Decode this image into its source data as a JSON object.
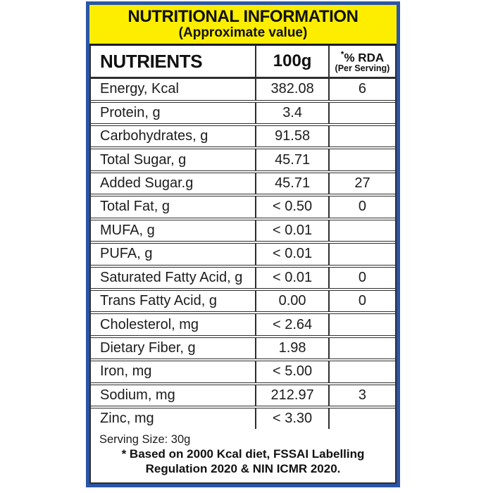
{
  "header": {
    "title": "NUTRITIONAL INFORMATION",
    "subtitle": "(Approximate value)"
  },
  "table": {
    "col_nutrients": "NUTRIENTS",
    "col_amount": "100g",
    "col_rda_star": "*",
    "col_rda_text": "% RDA",
    "col_rda_sub": "(Per Serving)",
    "rows": [
      {
        "name": "Energy, Kcal",
        "value": "382.08",
        "rda": "6"
      },
      {
        "name": "Protein, g",
        "value": "3.4",
        "rda": ""
      },
      {
        "name": "Carbohydrates, g",
        "value": "91.58",
        "rda": ""
      },
      {
        "name": "Total Sugar, g",
        "value": "45.71",
        "rda": ""
      },
      {
        "name": "Added Sugar.g",
        "value": "45.71",
        "rda": "27"
      },
      {
        "name": "Total Fat, g",
        "value": "< 0.50",
        "rda": "0"
      },
      {
        "name": "MUFA, g",
        "value": "< 0.01",
        "rda": ""
      },
      {
        "name": "PUFA, g",
        "value": "< 0.01",
        "rda": ""
      },
      {
        "name": "Saturated Fatty Acid, g",
        "value": "< 0.01",
        "rda": "0"
      },
      {
        "name": "Trans Fatty Acid, g",
        "value": "0.00",
        "rda": "0"
      },
      {
        "name": "Cholesterol, mg",
        "value": "< 2.64",
        "rda": ""
      },
      {
        "name": "Dietary Fiber, g",
        "value": "1.98",
        "rda": ""
      },
      {
        "name": "Iron, mg",
        "value": "< 5.00",
        "rda": ""
      },
      {
        "name": "Sodium, mg",
        "value": "212.97",
        "rda": "3"
      },
      {
        "name": "Zinc, mg",
        "value": "< 3.30",
        "rda": ""
      }
    ]
  },
  "footer": {
    "serving_size": "Serving Size: 30g",
    "note_line1": "* Based on 2000 Kcal diet, FSSAI Labelling",
    "note_line2": "Regulation 2020 & NIN ICMR 2020."
  },
  "colors": {
    "outer_border_blue": "#2b55a5",
    "header_yellow": "#fdee00",
    "grid_line": "#2e2e2e",
    "text": "#111111"
  }
}
